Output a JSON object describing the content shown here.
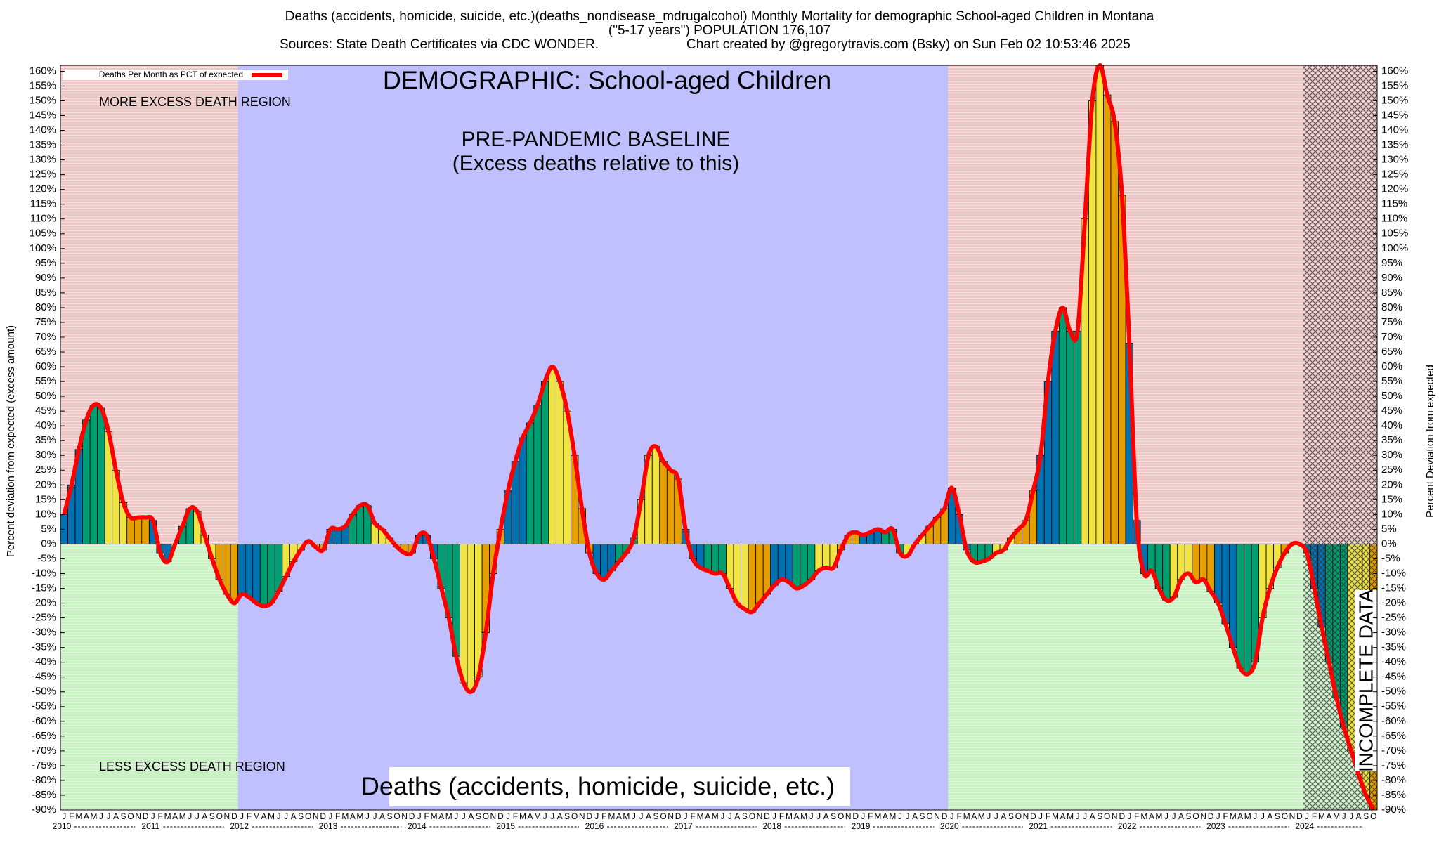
{
  "chart_data": {
    "type": "bar",
    "title": "Deaths (accidents, homicide, suicide, etc.)(deaths_nondisease_mdrugalcohol) Monthly Mortality for demographic School-aged Children in Montana",
    "subtitle": "(\"5-17 years\") POPULATION 176,107",
    "source": "Sources: State Death Certificates via CDC WONDER.",
    "credit": "Chart created by @gregorytravis.com (Bsky) on Sun Feb 02 10:53:46 2025",
    "ylabel": "Percent deviation from expected (excess amount)",
    "y2label": "Percent Deviation from expected",
    "annotations": {
      "demographic": "DEMOGRAPHIC: School-aged Children",
      "baseline": "PRE-PANDEMIC BASELINE",
      "baseline_note": "(Excess deaths relative to this)",
      "more": "MORE EXCESS DEATH REGION",
      "less": "LESS EXCESS DEATH REGION",
      "cause": "Deaths (accidents, homicide, suicide, etc.)",
      "incomplete": "INCOMPLETE DATA"
    },
    "years": [
      "2010",
      "2011",
      "2012",
      "2013",
      "2014",
      "2015",
      "2016",
      "2017",
      "2018",
      "2019",
      "2020",
      "2021",
      "2022",
      "2023",
      "2024"
    ],
    "categories": [
      "J",
      "F",
      "M",
      "A",
      "M",
      "J",
      "J",
      "A",
      "S",
      "O",
      "N",
      "D",
      "J",
      "F",
      "M",
      "A",
      "M",
      "J",
      "J",
      "A",
      "S",
      "O",
      "N",
      "D",
      "J",
      "F",
      "M",
      "A",
      "M",
      "J",
      "J",
      "A",
      "S",
      "O",
      "N",
      "D",
      "J",
      "F",
      "M",
      "A",
      "M",
      "J",
      "J",
      "A",
      "S",
      "O",
      "N",
      "D",
      "J",
      "F",
      "M",
      "A",
      "M",
      "J",
      "J",
      "A",
      "S",
      "O",
      "N",
      "D",
      "J",
      "F",
      "M",
      "A",
      "M",
      "J",
      "J",
      "A",
      "S",
      "O",
      "N",
      "D",
      "J",
      "F",
      "M",
      "A",
      "M",
      "J",
      "J",
      "A",
      "S",
      "O",
      "N",
      "D",
      "J",
      "F",
      "M",
      "A",
      "M",
      "J",
      "J",
      "A",
      "S",
      "O",
      "N",
      "D",
      "J",
      "F",
      "M",
      "A",
      "M",
      "J",
      "J",
      "A",
      "S",
      "O",
      "N",
      "D",
      "J",
      "F",
      "M",
      "A",
      "M",
      "J",
      "J",
      "A",
      "S",
      "O",
      "N",
      "D",
      "J",
      "F",
      "M",
      "A",
      "M",
      "J",
      "J",
      "A",
      "S",
      "O",
      "N",
      "D",
      "J",
      "F",
      "M",
      "A",
      "M",
      "J",
      "J",
      "A",
      "S",
      "O",
      "N",
      "D",
      "J",
      "F",
      "M",
      "A",
      "M",
      "J",
      "J",
      "A",
      "S",
      "O",
      "N",
      "D",
      "J",
      "F",
      "M",
      "A",
      "M",
      "J",
      "J",
      "A",
      "S",
      "O",
      "N",
      "D",
      "J",
      "F",
      "M",
      "A",
      "M",
      "J",
      "J",
      "A",
      "S",
      "O"
    ],
    "quarter_colors": [
      "#0072b2",
      "#009e73",
      "#f0e442",
      "#e69f00"
    ],
    "series": [
      {
        "name": "Deaths Per Month as PCT of expected",
        "color": "#ff0000",
        "values": [
          10,
          20,
          32,
          42,
          47,
          46,
          38,
          25,
          14,
          9,
          9,
          9,
          8,
          -3,
          -6,
          0,
          6,
          12,
          11,
          3,
          -5,
          -12,
          -17,
          -20,
          -17,
          -18,
          -20,
          -21,
          -20,
          -16,
          -11,
          -6,
          -2,
          1,
          -1,
          -2,
          5,
          5,
          6,
          10,
          13,
          13,
          7,
          5,
          2,
          -1,
          -3,
          -3,
          3,
          3,
          -5,
          -15,
          -25,
          -38,
          -47,
          -50,
          -45,
          -30,
          -10,
          5,
          18,
          28,
          36,
          41,
          47,
          55,
          60,
          55,
          45,
          30,
          12,
          -3,
          -10,
          -12,
          -9,
          -6,
          -3,
          2,
          15,
          30,
          33,
          28,
          25,
          22,
          5,
          -5,
          -8,
          -9,
          -10,
          -10,
          -15,
          -20,
          -22,
          -23,
          -20,
          -17,
          -14,
          -12,
          -13,
          -15,
          -14,
          -12,
          -9,
          -8,
          -8,
          -2,
          3,
          4,
          3,
          4,
          5,
          4,
          5,
          -3,
          -4,
          0,
          3,
          6,
          9,
          12,
          19,
          10,
          -2,
          -6,
          -6,
          -5,
          -3,
          -2,
          2,
          5,
          8,
          18,
          30,
          55,
          72,
          80,
          72,
          72,
          110,
          150,
          162,
          152,
          143,
          118,
          68,
          8,
          -10,
          -9,
          -15,
          -19,
          -18,
          -12,
          -10,
          -13,
          -12,
          -16,
          -20,
          -27,
          -35,
          -42,
          -44,
          -40,
          -25,
          -15,
          -8,
          -3,
          0,
          0,
          -3,
          -15,
          -28,
          -40,
          -52,
          -62,
          -70,
          -78,
          -85,
          -90
        ]
      }
    ],
    "ylim": [
      -90,
      162
    ],
    "yticks": [
      {
        "value": 160,
        "label": "160%"
      },
      {
        "value": 155,
        "label": "155%"
      },
      {
        "value": 150,
        "label": "150%"
      },
      {
        "value": 145,
        "label": "145%"
      },
      {
        "value": 140,
        "label": "140%"
      },
      {
        "value": 135,
        "label": "135%"
      },
      {
        "value": 130,
        "label": "130%"
      },
      {
        "value": 125,
        "label": "125%"
      },
      {
        "value": 120,
        "label": "120%"
      },
      {
        "value": 115,
        "label": "115%"
      },
      {
        "value": 110,
        "label": "110%"
      },
      {
        "value": 105,
        "label": "105%"
      },
      {
        "value": 100,
        "label": "100%"
      },
      {
        "value": 95,
        "label": "95%"
      },
      {
        "value": 90,
        "label": "90%"
      },
      {
        "value": 85,
        "label": "85%"
      },
      {
        "value": 80,
        "label": "80%"
      },
      {
        "value": 75,
        "label": "75%"
      },
      {
        "value": 70,
        "label": "70%"
      },
      {
        "value": 65,
        "label": "65%"
      },
      {
        "value": 60,
        "label": "60%"
      },
      {
        "value": 55,
        "label": "55%"
      },
      {
        "value": 50,
        "label": "50%"
      },
      {
        "value": 45,
        "label": "45%"
      },
      {
        "value": 40,
        "label": "40%"
      },
      {
        "value": 35,
        "label": "35%"
      },
      {
        "value": 30,
        "label": "30%"
      },
      {
        "value": 25,
        "label": "25%"
      },
      {
        "value": 20,
        "label": "20%"
      },
      {
        "value": 15,
        "label": "15%"
      },
      {
        "value": 10,
        "label": "10%"
      },
      {
        "value": 5,
        "label": "5%"
      },
      {
        "value": 0,
        "label": "0%"
      },
      {
        "value": -5,
        "label": "-5%"
      },
      {
        "value": -10,
        "label": "-10%"
      },
      {
        "value": -15,
        "label": "-15%"
      },
      {
        "value": -20,
        "label": "-20%"
      },
      {
        "value": -25,
        "label": "-25%"
      },
      {
        "value": -30,
        "label": "-30%"
      },
      {
        "value": -35,
        "label": "-35%"
      },
      {
        "value": -40,
        "label": "-40%"
      },
      {
        "value": -45,
        "label": "-45%"
      },
      {
        "value": -50,
        "label": "-50%"
      },
      {
        "value": -55,
        "label": "-55%"
      },
      {
        "value": -60,
        "label": "-60%"
      },
      {
        "value": -65,
        "label": "-65%"
      },
      {
        "value": -70,
        "label": "-70%"
      },
      {
        "value": -75,
        "label": "-75%"
      },
      {
        "value": -80,
        "label": "-80%"
      },
      {
        "value": -85,
        "label": "-85%"
      },
      {
        "value": -90,
        "label": "-90%"
      }
    ]
  }
}
